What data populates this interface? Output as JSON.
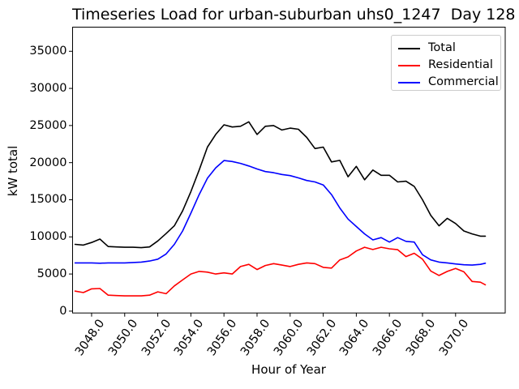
{
  "chart_data": {
    "type": "line",
    "title": "Timeseries Load for urban-suburban uhs0_1247  Day 128",
    "xlabel": "Hour of Year",
    "ylabel": "kW total",
    "xlim": [
      3046.85,
      3073.0
    ],
    "ylim": [
      -250,
      38250
    ],
    "grid": false,
    "legend_position": "upper right",
    "x_tick_values": [
      3048,
      3050,
      3052,
      3054,
      3056,
      3058,
      3060,
      3062,
      3064,
      3066,
      3068,
      3070
    ],
    "x_tick_labels": [
      "3048.0",
      "3050.0",
      "3052.0",
      "3054.0",
      "3056.0",
      "3058.0",
      "3060.0",
      "3062.0",
      "3064.0",
      "3066.0",
      "3068.0",
      "3070.0"
    ],
    "y_tick_values": [
      0,
      5000,
      10000,
      15000,
      20000,
      25000,
      30000,
      35000
    ],
    "y_tick_labels": [
      "0",
      "5000",
      "10000",
      "15000",
      "20000",
      "25000",
      "30000",
      "35000"
    ],
    "x": [
      3047.0,
      3047.5,
      3048.0,
      3048.5,
      3049.0,
      3049.5,
      3050.0,
      3050.5,
      3051.0,
      3051.5,
      3052.0,
      3052.5,
      3053.0,
      3053.5,
      3054.0,
      3054.5,
      3055.0,
      3055.5,
      3056.0,
      3056.5,
      3057.0,
      3057.5,
      3058.0,
      3058.5,
      3059.0,
      3059.5,
      3060.0,
      3060.5,
      3061.0,
      3061.5,
      3062.0,
      3062.5,
      3063.0,
      3063.5,
      3064.0,
      3064.5,
      3065.0,
      3065.5,
      3066.0,
      3066.5,
      3067.0,
      3067.5,
      3068.0,
      3068.5,
      3069.0,
      3069.5,
      3070.0,
      3070.5,
      3071.0,
      3071.5,
      3071.8
    ],
    "series": [
      {
        "name": "Total",
        "color": "#000000",
        "values": [
          9000,
          8900,
          9250,
          9700,
          8700,
          8650,
          8600,
          8600,
          8550,
          8650,
          9450,
          10450,
          11500,
          13500,
          16100,
          19000,
          22100,
          23800,
          25100,
          24800,
          24900,
          25500,
          23800,
          24900,
          25000,
          24400,
          24650,
          24500,
          23400,
          21900,
          22100,
          20100,
          20300,
          18100,
          19500,
          17700,
          19000,
          18300,
          18300,
          17400,
          17500,
          16800,
          15000,
          12900,
          11500,
          12500,
          11800,
          10800,
          10400,
          10100,
          10100
        ]
      },
      {
        "name": "Residential",
        "color": "#ff0000",
        "values": [
          2700,
          2500,
          3000,
          3050,
          2150,
          2100,
          2050,
          2050,
          2050,
          2150,
          2600,
          2350,
          3400,
          4200,
          5000,
          5350,
          5250,
          5000,
          5150,
          5000,
          6000,
          6300,
          5600,
          6150,
          6400,
          6200,
          6000,
          6300,
          6500,
          6400,
          5900,
          5800,
          6900,
          7300,
          8100,
          8600,
          8300,
          8600,
          8400,
          8270,
          7350,
          7800,
          7000,
          5400,
          4800,
          5350,
          5750,
          5300,
          4000,
          3900,
          3550
        ]
      },
      {
        "name": "Commercial",
        "color": "#0000ff",
        "values": [
          6500,
          6500,
          6500,
          6450,
          6500,
          6500,
          6500,
          6550,
          6600,
          6750,
          7000,
          7700,
          9000,
          10800,
          13200,
          15700,
          17900,
          19300,
          20280,
          20150,
          19900,
          19550,
          19150,
          18800,
          18650,
          18400,
          18250,
          17950,
          17600,
          17400,
          17000,
          15700,
          13900,
          12400,
          11400,
          10400,
          9600,
          9900,
          9300,
          9900,
          9400,
          9300,
          7600,
          6900,
          6600,
          6500,
          6350,
          6250,
          6200,
          6300,
          6450
        ]
      }
    ]
  }
}
